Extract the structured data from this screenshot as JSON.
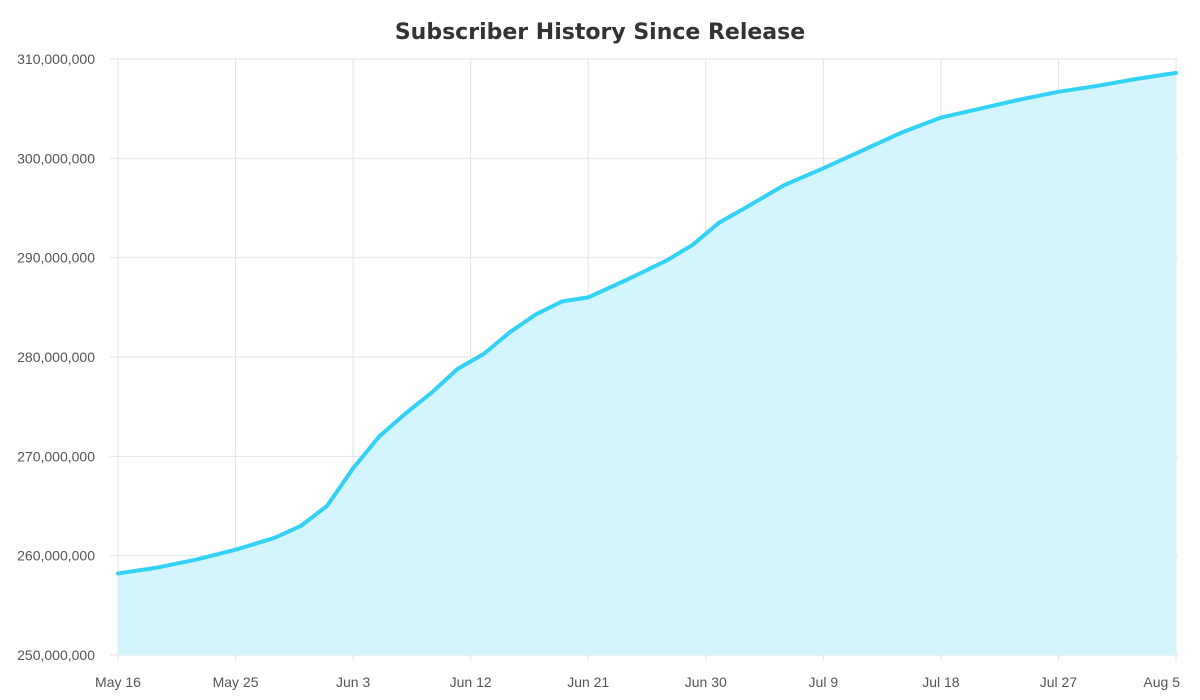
{
  "chart_data": {
    "type": "area",
    "title": "Subscriber History Since Release",
    "xlabel": "",
    "ylabel": "",
    "grid": true,
    "colors": {
      "line": "#33d1f5",
      "fill": "#d4f5fd",
      "grid": "#e4e4e4"
    },
    "ylim": [
      250000000,
      310000000
    ],
    "y_ticks": [
      250000000,
      260000000,
      270000000,
      280000000,
      290000000,
      300000000,
      310000000
    ],
    "y_tick_labels": [
      "250,000,000",
      "260,000,000",
      "270,000,000",
      "280,000,000",
      "290,000,000",
      "300,000,000",
      "310,000,000"
    ],
    "xlim": [
      "May 16",
      "Aug 5"
    ],
    "x_tick_labels": [
      "May 16",
      "May 25",
      "Jun 3",
      "Jun 12",
      "Jun 21",
      "Jun 30",
      "Jul 9",
      "Jul 18",
      "Jul 27",
      "Aug 5"
    ],
    "series": [
      {
        "x": [
          "May 16",
          "May 19",
          "May 22",
          "May 25",
          "May 28",
          "May 30",
          "Jun 1",
          "Jun 3",
          "Jun 5",
          "Jun 7",
          "Jun 9",
          "Jun 11",
          "Jun 13",
          "Jun 15",
          "Jun 17",
          "Jun 19",
          "Jun 21",
          "Jun 24",
          "Jun 27",
          "Jun 29",
          "Jul 1",
          "Jul 3",
          "Jul 6",
          "Jul 9",
          "Jul 12",
          "Jul 15",
          "Jul 18",
          "Jul 21",
          "Jul 24",
          "Jul 27",
          "Jul 30",
          "Aug 2",
          "Aug 5"
        ],
        "y": [
          258200000,
          258800000,
          259600000,
          260600000,
          261800000,
          263000000,
          265000000,
          268800000,
          272000000,
          274300000,
          276400000,
          278800000,
          280300000,
          282500000,
          284300000,
          285600000,
          286000000,
          287800000,
          289700000,
          291300000,
          293500000,
          295000000,
          297300000,
          299000000,
          300800000,
          302600000,
          304100000,
          305000000,
          305900000,
          306700000,
          307300000,
          308000000,
          308600000
        ]
      }
    ]
  }
}
